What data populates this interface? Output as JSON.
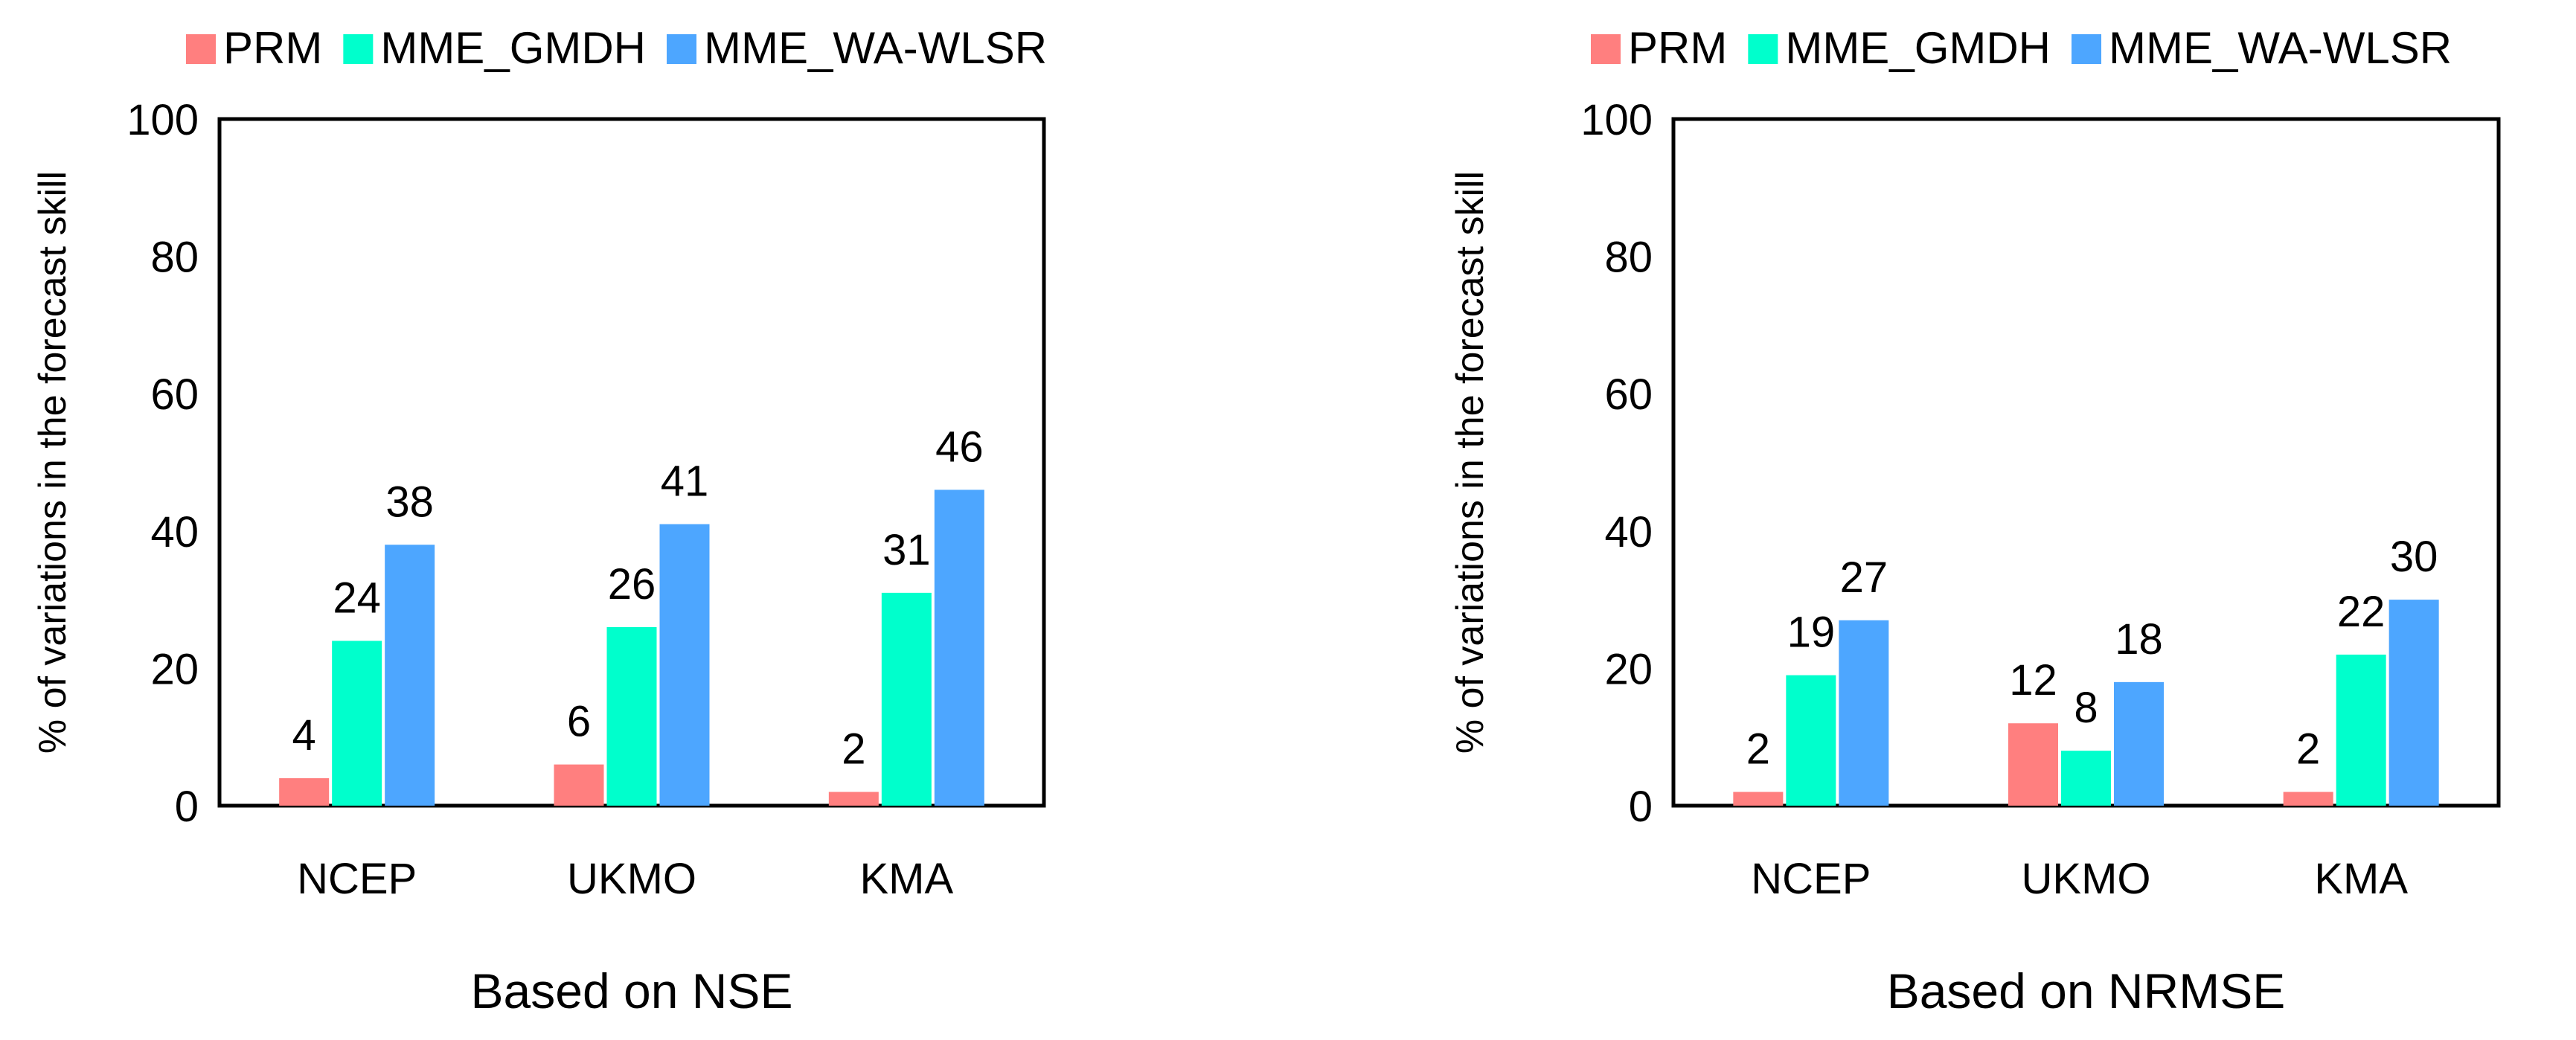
{
  "chart_data": [
    {
      "type": "bar",
      "title": "",
      "xlabel": "Based on NSE",
      "ylabel": "% of variations in the forecast skill",
      "ylim": [
        0,
        100
      ],
      "yticks": [
        0,
        20,
        40,
        60,
        80,
        100
      ],
      "grid": false,
      "legend": "top",
      "categories": [
        "NCEP",
        "UKMO",
        "KMA"
      ],
      "series": [
        {
          "name": "PRM",
          "color": "#ff7f7f",
          "values": [
            4,
            6,
            2
          ],
          "labels": [
            "4",
            "6",
            "2"
          ]
        },
        {
          "name": "MME_GMDH",
          "color": "#00ffcc",
          "values": [
            24,
            26,
            31
          ],
          "labels": [
            "24",
            "26",
            "31"
          ]
        },
        {
          "name": "MME_WA-WLSR",
          "color": "#4da6ff",
          "values": [
            38,
            41,
            46
          ],
          "labels": [
            "38",
            "41",
            "46"
          ]
        }
      ]
    },
    {
      "type": "bar",
      "title": "",
      "xlabel": "Based on NRMSE",
      "ylabel": "% of variations in the forecast skill",
      "ylim": [
        0,
        100
      ],
      "yticks": [
        0,
        20,
        40,
        60,
        80,
        100
      ],
      "grid": false,
      "legend": "top",
      "categories": [
        "NCEP",
        "UKMO",
        "KMA"
      ],
      "series": [
        {
          "name": "PRM",
          "color": "#ff7f7f",
          "values": [
            2,
            12,
            2
          ],
          "labels": [
            "2",
            "12",
            "2"
          ]
        },
        {
          "name": "MME_GMDH",
          "color": "#00ffcc",
          "values": [
            19,
            8,
            22
          ],
          "labels": [
            "19",
            "8",
            "22"
          ]
        },
        {
          "name": "MME_WA-WLSR",
          "color": "#4da6ff",
          "values": [
            27,
            18,
            30
          ],
          "labels": [
            "27",
            "18",
            "30"
          ]
        }
      ]
    }
  ]
}
